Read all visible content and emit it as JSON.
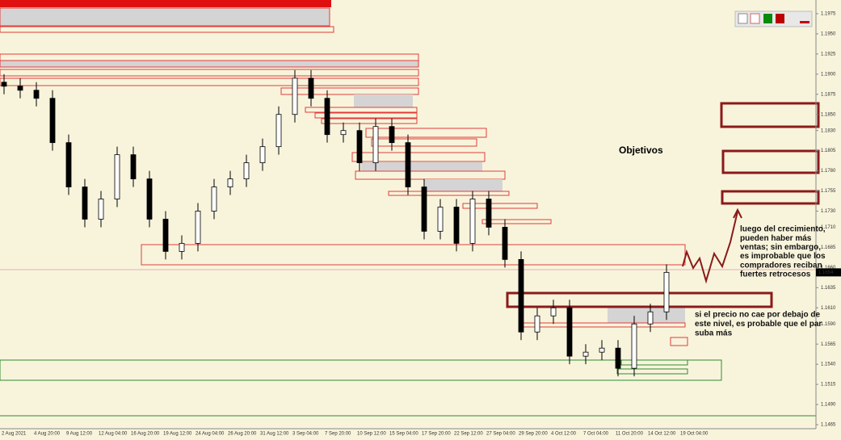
{
  "chart_data": {
    "type": "candlestick",
    "ylim": [
      1.146,
      1.1992
    ],
    "yticks": [
      1.1975,
      {
        "value": 1.195,
        "label": "1.1950"
      },
      1.1925,
      {
        "value": 1.19,
        "label": "1.1900"
      },
      1.1875,
      {
        "value": 1.185,
        "label": "1.1850"
      },
      {
        "value": 1.183,
        "label": "1.1830"
      },
      1.1805,
      {
        "value": 1.178,
        "label": "1.1780"
      },
      1.1755,
      {
        "value": 1.173,
        "label": "1.1730"
      },
      {
        "value": 1.171,
        "label": "1.1710"
      },
      1.1685,
      {
        "value": 1.166,
        "label": "1.1660"
      },
      1.1635,
      {
        "value": 1.161,
        "label": "1.1610"
      },
      {
        "value": 1.159,
        "label": "1.1590"
      },
      1.1565,
      {
        "value": 1.154,
        "label": "1.1540"
      },
      1.1515,
      {
        "value": 1.149,
        "label": "1.1490"
      },
      1.1465
    ],
    "time_labels": [
      "2 Aug 2021",
      "4 Aug 20:00",
      "9 Aug 12:00",
      "12 Aug 04:00",
      "16 Aug 20:00",
      "19 Aug 12:00",
      "24 Aug 04:00",
      "26 Aug 20:00",
      "31 Aug 12:00",
      "3 Sep 04:00",
      "7 Sep 20:00",
      "10 Sep 12:00",
      "15 Sep 04:00",
      "17 Sep 20:00",
      "22 Sep 12:00",
      "27 Sep 04:00",
      "29 Sep 20:00",
      "4 Oct 12:00",
      "7 Oct 04:00",
      "11 Oct 20:00",
      "14 Oct 12:00",
      "19 Oct 04:00"
    ],
    "open": [
      1.189,
      1.1885,
      1.188,
      1.187,
      1.1815,
      1.176,
      1.172,
      1.1745,
      1.18,
      1.177,
      1.172,
      1.168,
      1.169,
      1.173,
      1.176,
      1.177,
      1.179,
      1.181,
      1.185,
      1.1895,
      1.187,
      1.1825,
      1.183,
      1.179,
      1.1835,
      1.1815,
      1.176,
      1.1705,
      1.1735,
      1.169,
      1.1745,
      1.171,
      1.167,
      1.158,
      1.16,
      1.161,
      1.155,
      1.1555,
      1.156,
      1.1535,
      1.159,
      1.1605
    ],
    "high": [
      1.19,
      1.1895,
      1.189,
      1.188,
      1.1825,
      1.177,
      1.1755,
      1.181,
      1.181,
      1.178,
      1.173,
      1.17,
      1.174,
      1.177,
      1.178,
      1.18,
      1.182,
      1.186,
      1.1905,
      1.1905,
      1.188,
      1.184,
      1.184,
      1.1845,
      1.1845,
      1.1825,
      1.177,
      1.1745,
      1.1745,
      1.1755,
      1.1755,
      1.172,
      1.168,
      1.161,
      1.162,
      1.162,
      1.1565,
      1.157,
      1.157,
      1.16,
      1.1615,
      1.1664
    ],
    "low": [
      1.1875,
      1.187,
      1.186,
      1.1805,
      1.175,
      1.171,
      1.171,
      1.1735,
      1.176,
      1.171,
      1.167,
      1.167,
      1.168,
      1.172,
      1.175,
      1.176,
      1.178,
      1.18,
      1.184,
      1.186,
      1.1815,
      1.1815,
      1.178,
      1.178,
      1.1805,
      1.175,
      1.1695,
      1.1695,
      1.168,
      1.168,
      1.17,
      1.166,
      1.157,
      1.157,
      1.159,
      1.154,
      1.154,
      1.1545,
      1.1525,
      1.1525,
      1.158,
      1.1595
    ],
    "close": [
      1.1885,
      1.188,
      1.187,
      1.1815,
      1.176,
      1.172,
      1.1745,
      1.18,
      1.177,
      1.172,
      1.168,
      1.169,
      1.173,
      1.176,
      1.177,
      1.179,
      1.181,
      1.185,
      1.1895,
      1.187,
      1.1825,
      1.183,
      1.179,
      1.1835,
      1.1815,
      1.176,
      1.1705,
      1.1735,
      1.169,
      1.1745,
      1.171,
      1.167,
      1.158,
      1.16,
      1.161,
      1.155,
      1.1555,
      1.156,
      1.1535,
      1.159,
      1.1605,
      1.1654
    ],
    "current_price": 1.1654,
    "annotations": {
      "targets": "Objetivos",
      "upper_note": [
        "luego del crecimiento,",
        "pueden haber más",
        "ventas; sin embargo,",
        "es improbable que los",
        "compradores reciban",
        "fuertes retrocesos"
      ],
      "lower_note": [
        "si el precio no cae por debajo de",
        "este nivel, es probable que el par",
        "suba más"
      ]
    }
  }
}
